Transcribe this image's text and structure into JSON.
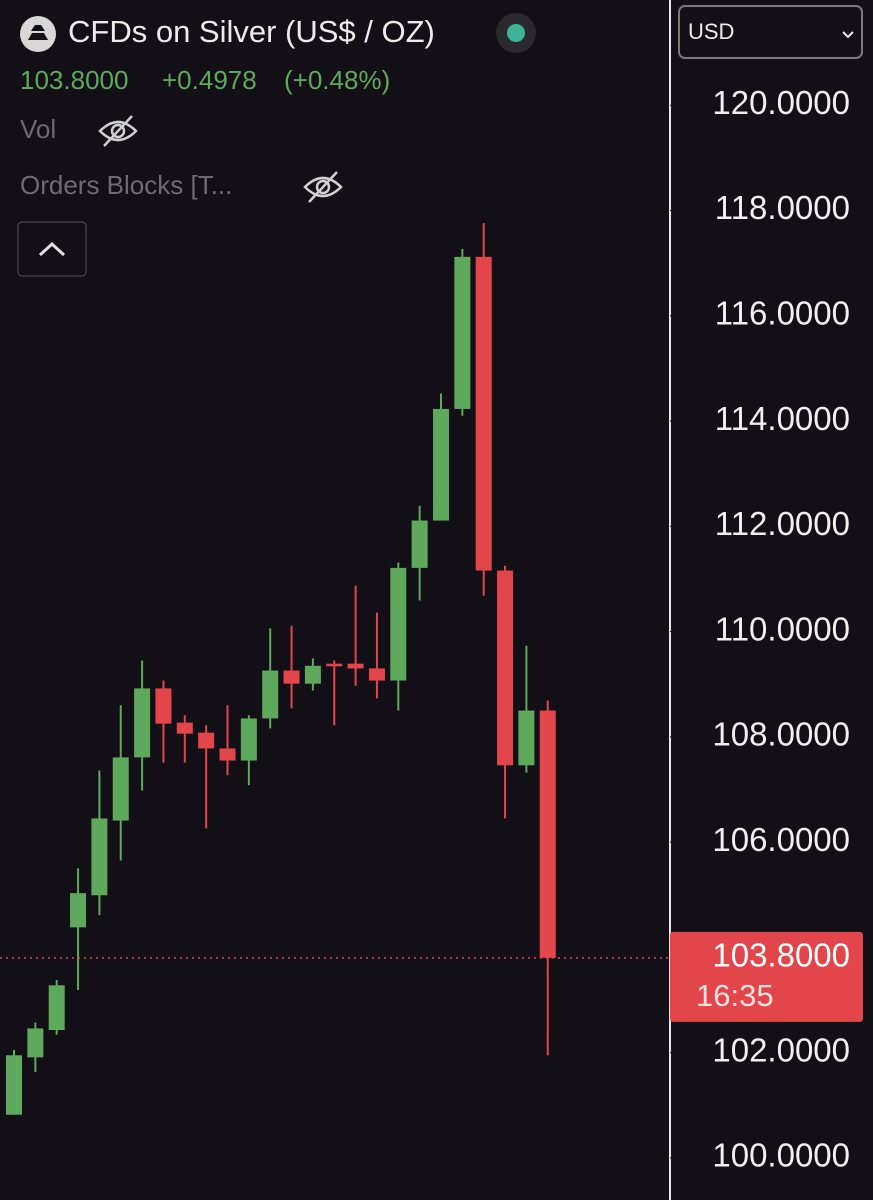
{
  "chart_data": {
    "type": "candlestick",
    "title": "CFDs on Silver (US$ / OZ)",
    "quote": {
      "price": "103.8000",
      "change": "+0.4978",
      "change_pct": "(+0.48%)"
    },
    "indicators": [
      "Vol",
      "Orders Blocks [T..."
    ],
    "currency": "USD",
    "up_color": "#5ea95b",
    "down_color": "#e2464b",
    "open": [
      100.82,
      101.91,
      102.43,
      104.38,
      104.99,
      106.41,
      107.61,
      108.92,
      108.27,
      108.08,
      107.78,
      107.55,
      108.35,
      109.26,
      109.01,
      109.39,
      109.39,
      109.3,
      109.07,
      111.21,
      112.11,
      114.23,
      117.12,
      111.16,
      107.46,
      108.5
    ],
    "high": [
      102.05,
      102.57,
      103.38,
      105.5,
      107.36,
      108.6,
      109.45,
      109.07,
      108.41,
      108.22,
      108.6,
      108.41,
      110.06,
      110.11,
      109.49,
      109.45,
      110.87,
      110.36,
      111.31,
      112.39,
      114.52,
      117.27,
      117.76,
      111.25,
      109.73,
      108.69
    ],
    "low": [
      100.82,
      101.63,
      102.34,
      103.19,
      104.61,
      105.65,
      106.98,
      107.51,
      107.51,
      106.26,
      107.27,
      107.08,
      108.16,
      108.54,
      108.88,
      108.22,
      108.97,
      108.73,
      108.5,
      110.59,
      112.11,
      114.1,
      110.68,
      106.45,
      107.32,
      101.95
    ],
    "close": [
      101.95,
      102.46,
      103.28,
      105.03,
      106.45,
      107.61,
      108.92,
      108.25,
      108.06,
      107.78,
      107.55,
      108.35,
      109.26,
      109.01,
      109.35,
      109.34,
      109.3,
      109.07,
      111.21,
      112.11,
      114.23,
      117.12,
      111.16,
      107.46,
      108.5,
      103.8
    ],
    "last_price": {
      "value": 103.8,
      "label": "103.8000"
    },
    "countdown": "16:35",
    "ylim": [
      99.2,
      122
    ],
    "yticks": [
      {
        "value": 100,
        "label": "100.0000"
      },
      {
        "value": 102,
        "label": "102.0000"
      },
      {
        "value": 106,
        "label": "106.0000"
      },
      {
        "value": 108,
        "label": "108.0000"
      },
      {
        "value": 110,
        "label": "110.0000"
      },
      {
        "value": 112,
        "label": "112.0000"
      },
      {
        "value": 114,
        "label": "114.0000"
      },
      {
        "value": 116,
        "label": "116.0000"
      },
      {
        "value": 118,
        "label": "118.0000"
      },
      {
        "value": 120,
        "label": "120.0000"
      }
    ]
  }
}
